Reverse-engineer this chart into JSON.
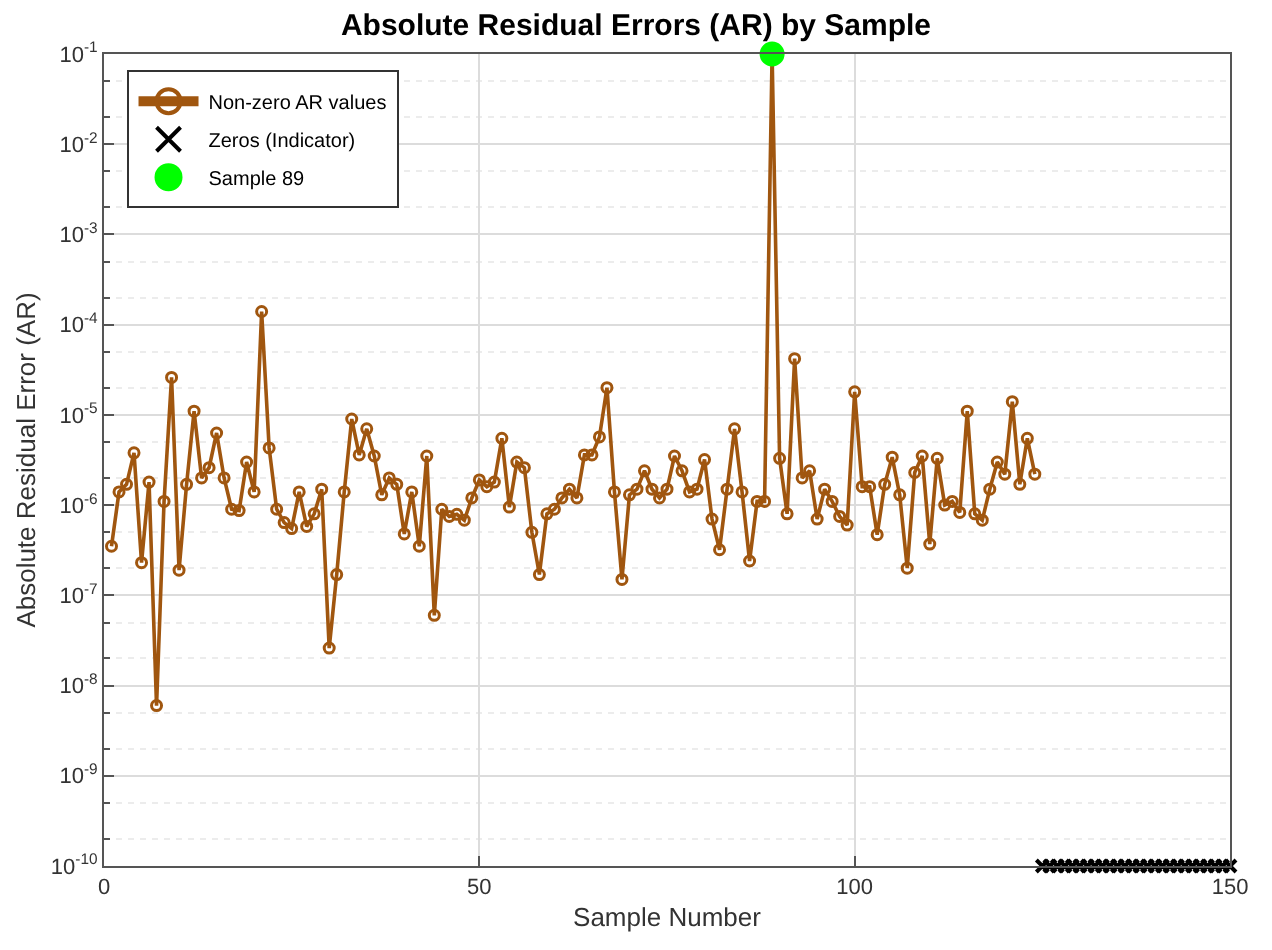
{
  "chart_data": {
    "type": "line",
    "title": "Absolute Residual Errors (AR) by Sample",
    "xlabel": "Sample Number",
    "ylabel": "Absolute Residual Error (AR)",
    "log": "y",
    "grid": true,
    "legend": "top left",
    "xlim": [
      0,
      150
    ],
    "xticks": [
      0,
      50,
      100,
      150
    ],
    "ylim": [
      1e-10,
      0.1
    ],
    "yticks": [
      {
        "value": 1e-10,
        "label": "10$^{-10}$"
      },
      {
        "value": 1e-09,
        "label": "10$^{-9}$"
      },
      {
        "value": 1e-08,
        "label": "10$^{-8}$"
      },
      {
        "value": 1e-07,
        "label": "10$^{-7}$"
      },
      {
        "value": 1e-06,
        "label": "10$^{-6}$"
      },
      {
        "value": 1e-05,
        "label": "10$^{-5}$"
      },
      {
        "value": 0.0001,
        "label": "10$^{-4}$"
      },
      {
        "value": 0.001,
        "label": "10$^{-3}$"
      },
      {
        "value": 0.01,
        "label": "10$^{-2}$"
      },
      {
        "value": 0.1,
        "label": "10$^{-1}$"
      }
    ],
    "series": [
      {
        "name": "Non-zero AR values",
        "color": "#a0560f",
        "marker": "circle",
        "x": [
          1,
          2,
          3,
          4,
          5,
          6,
          7,
          8,
          9,
          10,
          11,
          12,
          13,
          14,
          15,
          16,
          17,
          18,
          19,
          20,
          21,
          22,
          23,
          24,
          25,
          26,
          27,
          28,
          29,
          30,
          31,
          32,
          33,
          34,
          35,
          36,
          37,
          38,
          39,
          40,
          41,
          42,
          43,
          44,
          45,
          46,
          47,
          48,
          49,
          50,
          51,
          52,
          53,
          54,
          55,
          56,
          57,
          58,
          59,
          60,
          61,
          62,
          63,
          64,
          65,
          66,
          67,
          68,
          69,
          70,
          71,
          72,
          73,
          74,
          75,
          76,
          77,
          78,
          79,
          80,
          81,
          82,
          83,
          84,
          85,
          86,
          87,
          88,
          89,
          90,
          91,
          92,
          93,
          94,
          95,
          96,
          97,
          98,
          99,
          100,
          101,
          102,
          103,
          104,
          105,
          106,
          107,
          108,
          109,
          110,
          111,
          112,
          113,
          114,
          115,
          116,
          117,
          118,
          119,
          120,
          121,
          122,
          123,
          124
        ],
        "values": [
          3.5e-07,
          1.4e-06,
          1.7e-06,
          3.8e-06,
          2.3e-07,
          1.8e-06,
          6e-09,
          1.1e-06,
          2.6e-05,
          1.9e-07,
          1.7e-06,
          1.1e-05,
          2e-06,
          2.6e-06,
          6.3e-06,
          2e-06,
          9e-07,
          8.7e-07,
          3e-06,
          1.4e-06,
          0.00014,
          4.3e-06,
          9e-07,
          6.4e-07,
          5.5e-07,
          1.4e-06,
          5.8e-07,
          8e-07,
          1.5e-06,
          2.6e-08,
          1.7e-07,
          1.4e-06,
          9e-06,
          3.6e-06,
          7e-06,
          3.5e-06,
          1.3e-06,
          2e-06,
          1.7e-06,
          4.8e-07,
          1.4e-06,
          3.5e-07,
          3.5e-06,
          6e-08,
          9e-07,
          7.5e-07,
          7.9e-07,
          6.8e-07,
          1.2e-06,
          1.9e-06,
          1.6e-06,
          1.8e-06,
          5.5e-06,
          9.5e-07,
          3e-06,
          2.6e-06,
          5e-07,
          1.7e-07,
          8e-07,
          9e-07,
          1.2e-06,
          1.5e-06,
          1.2e-06,
          3.6e-06,
          3.6e-06,
          5.7e-06,
          2e-05,
          1.4e-06,
          1.5e-07,
          1.3e-06,
          1.5e-06,
          2.4e-06,
          1.5e-06,
          1.2e-06,
          1.5e-06,
          3.5e-06,
          2.4e-06,
          1.4e-06,
          1.5e-06,
          3.2e-06,
          7e-07,
          3.2e-07,
          1.5e-06,
          7e-06,
          1.4e-06,
          2.4e-07,
          1.1e-06,
          1.1e-06,
          0.1,
          3.3e-06,
          8e-07,
          4.2e-05,
          2e-06,
          2.4e-06,
          7e-07,
          1.5e-06,
          1.1e-06,
          7.5e-07,
          6e-07,
          1.8e-05,
          1.6e-06,
          1.6e-06,
          4.7e-07,
          1.7e-06,
          3.4e-06,
          1.3e-06,
          2e-07,
          2.3e-06,
          3.5e-06,
          3.7e-07,
          3.3e-06,
          1e-06,
          1.1e-06,
          8.3e-07,
          1.1e-05,
          8e-07,
          6.8e-07,
          1.5e-06,
          3e-06,
          2.2e-06,
          1.4e-05,
          1.7e-06,
          5.5e-06,
          2.2e-06
        ]
      },
      {
        "name": "Zeros (Indicator)",
        "type": "scatter",
        "color": "#000000",
        "marker": "cross",
        "x": [
          125,
          126,
          127,
          128,
          129,
          130,
          131,
          132,
          133,
          134,
          135,
          136,
          137,
          138,
          139,
          140,
          141,
          142,
          143,
          144,
          145,
          146,
          147,
          148,
          149,
          150
        ],
        "values": [
          1e-10,
          1e-10,
          1e-10,
          1e-10,
          1e-10,
          1e-10,
          1e-10,
          1e-10,
          1e-10,
          1e-10,
          1e-10,
          1e-10,
          1e-10,
          1e-10,
          1e-10,
          1e-10,
          1e-10,
          1e-10,
          1e-10,
          1e-10,
          1e-10,
          1e-10,
          1e-10,
          1e-10,
          1e-10,
          1e-10
        ]
      },
      {
        "name": "Sample 89",
        "type": "scatter",
        "color": "#00ff00",
        "marker": "circle",
        "x": [
          89
        ],
        "values": [
          0.1
        ]
      }
    ]
  }
}
